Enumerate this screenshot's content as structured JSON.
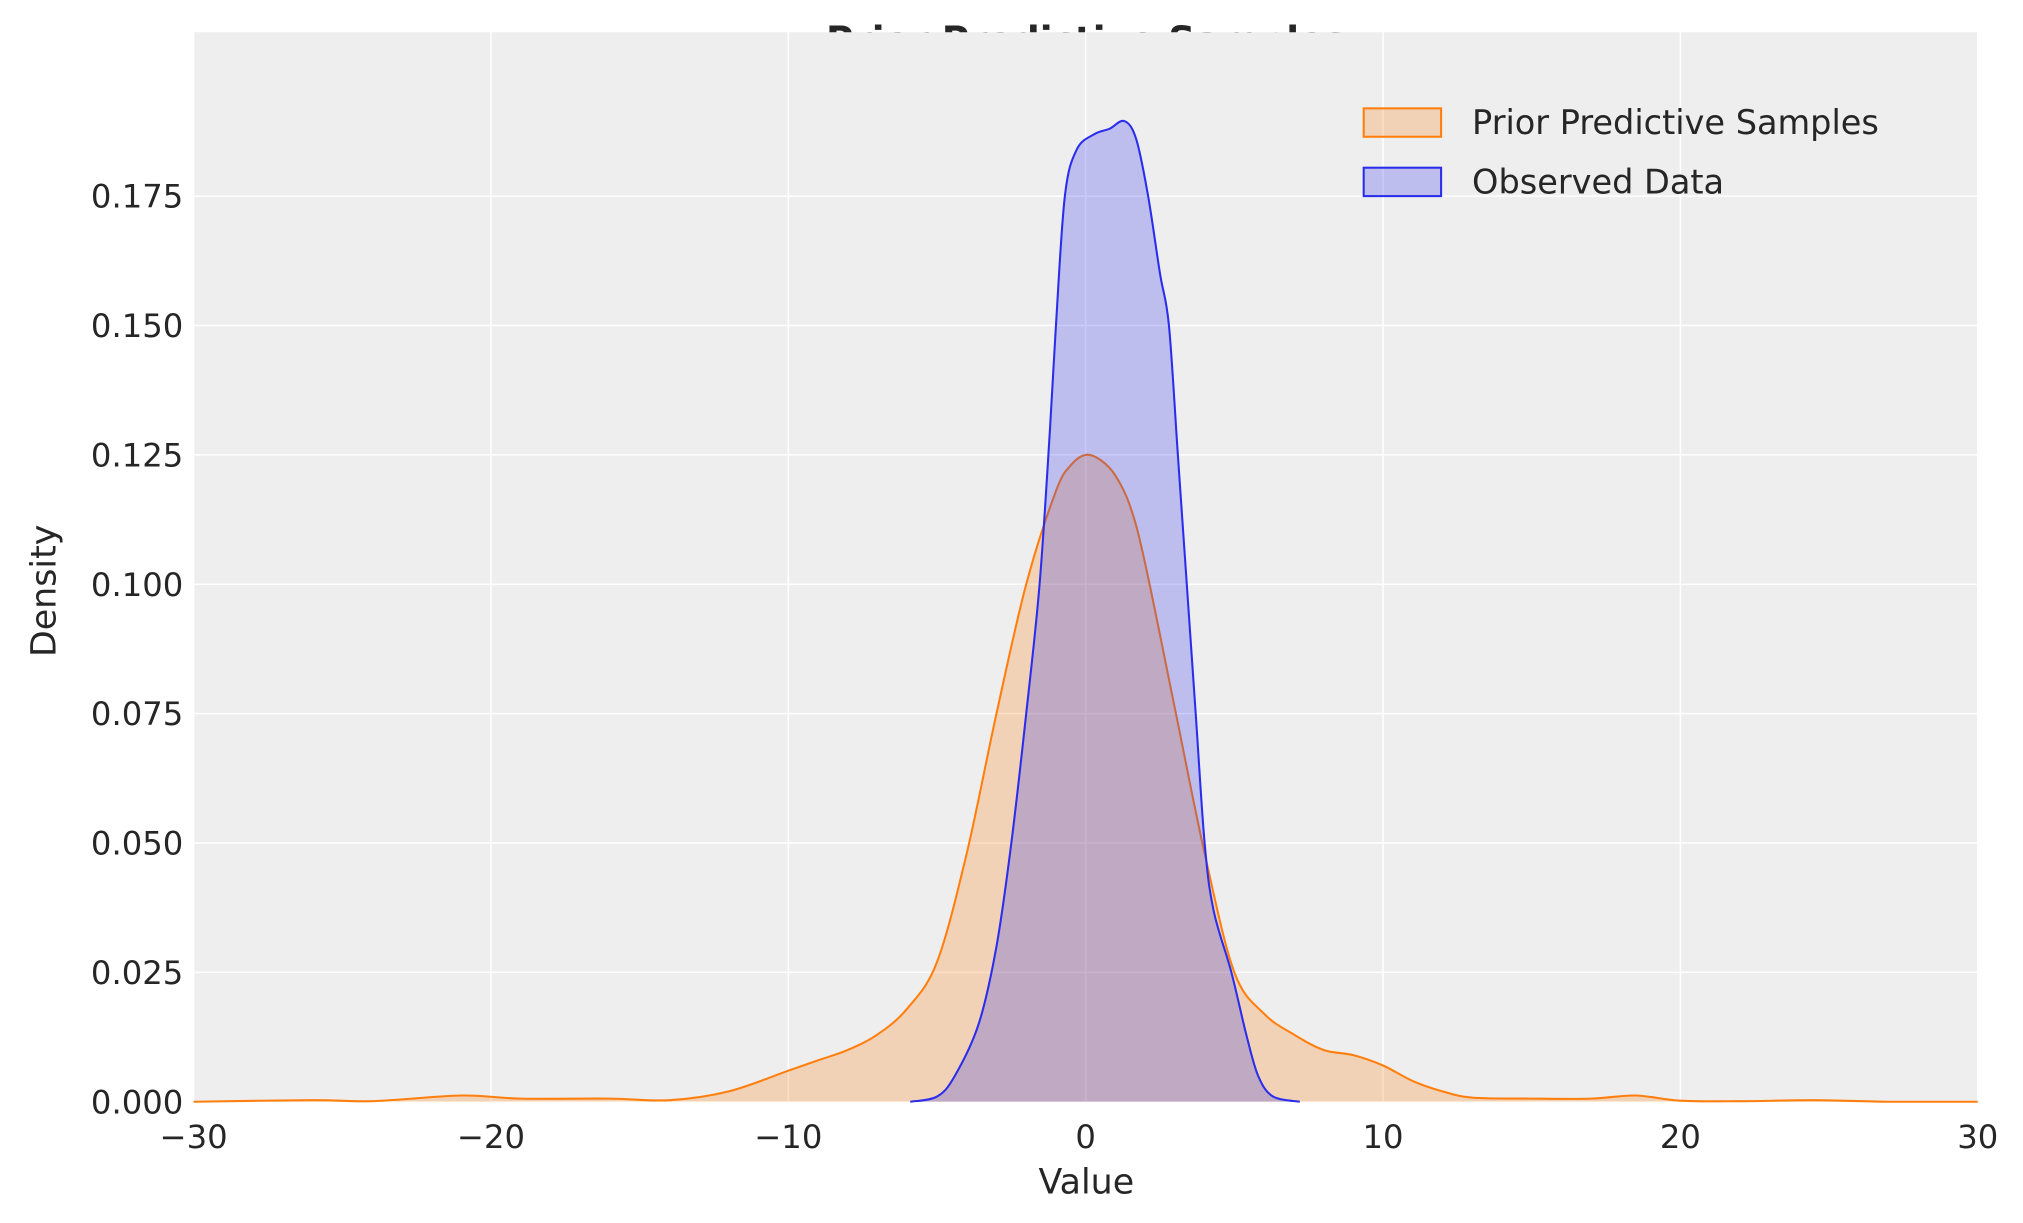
{
  "chart_data": {
    "type": "area",
    "title": "Prior Predictive Samples",
    "xlabel": "Value",
    "ylabel": "Density",
    "xlim": [
      -30,
      30
    ],
    "ylim": [
      0,
      0.198
    ],
    "xticks": [
      -30,
      -20,
      -10,
      0,
      10,
      20,
      30
    ],
    "xtick_labels": [
      "−30",
      "−20",
      "−10",
      "0",
      "10",
      "20",
      "30"
    ],
    "yticks": [
      0,
      0.025,
      0.05,
      0.075,
      0.1,
      0.125,
      0.15,
      0.175
    ],
    "ytick_labels": [
      "0.000",
      "0.025",
      "0.050",
      "0.075",
      "0.100",
      "0.125",
      "0.150",
      "0.175"
    ],
    "grid": true,
    "legend_placement": "top-right",
    "background": "#eeeeee",
    "series": [
      {
        "name": "Prior Predictive Samples",
        "color": "#ff7f0e",
        "fill": "#f2d0b6",
        "x": [
          -30,
          -26,
          -24,
          -21,
          -19,
          -16,
          -14,
          -12,
          -10,
          -9,
          -8,
          -7,
          -6,
          -5,
          -4,
          -3,
          -2,
          -1,
          -0.5,
          0,
          0.5,
          1,
          1.5,
          2,
          3,
          4,
          5,
          6,
          7,
          8,
          9,
          10,
          11,
          12,
          13,
          15,
          17,
          18.5,
          20,
          22,
          24.5,
          27,
          30
        ],
        "y": [
          0,
          0.0003,
          0.0001,
          0.0012,
          0.0006,
          0.0006,
          0.0003,
          0.002,
          0.006,
          0.008,
          0.01,
          0.013,
          0.018,
          0.027,
          0.048,
          0.075,
          0.1,
          0.118,
          0.123,
          0.125,
          0.124,
          0.121,
          0.115,
          0.104,
          0.076,
          0.048,
          0.025,
          0.017,
          0.013,
          0.01,
          0.009,
          0.007,
          0.004,
          0.002,
          0.0008,
          0.0006,
          0.0006,
          0.0012,
          0.0002,
          0.0001,
          0.0003,
          0,
          0
        ]
      },
      {
        "name": "Observed Data",
        "color": "#2a2eec",
        "fill": "#b9bcee",
        "x": [
          -5.9,
          -5,
          -4.4,
          -3.6,
          -3,
          -2.5,
          -2,
          -1.55,
          -1.2,
          -1,
          -0.7,
          -0.3,
          0.3,
          0.8,
          1.3,
          1.7,
          2.1,
          2.5,
          2.8,
          3.1,
          3.4,
          3.7,
          4,
          4.3,
          4.9,
          5.4,
          5.8,
          6.3,
          7.2
        ],
        "y": [
          0,
          0.001,
          0.005,
          0.015,
          0.03,
          0.05,
          0.075,
          0.1,
          0.13,
          0.15,
          0.175,
          0.184,
          0.187,
          0.188,
          0.1895,
          0.186,
          0.175,
          0.16,
          0.15,
          0.125,
          0.1,
          0.075,
          0.05,
          0.037,
          0.025,
          0.013,
          0.005,
          0.001,
          0
        ]
      }
    ]
  }
}
